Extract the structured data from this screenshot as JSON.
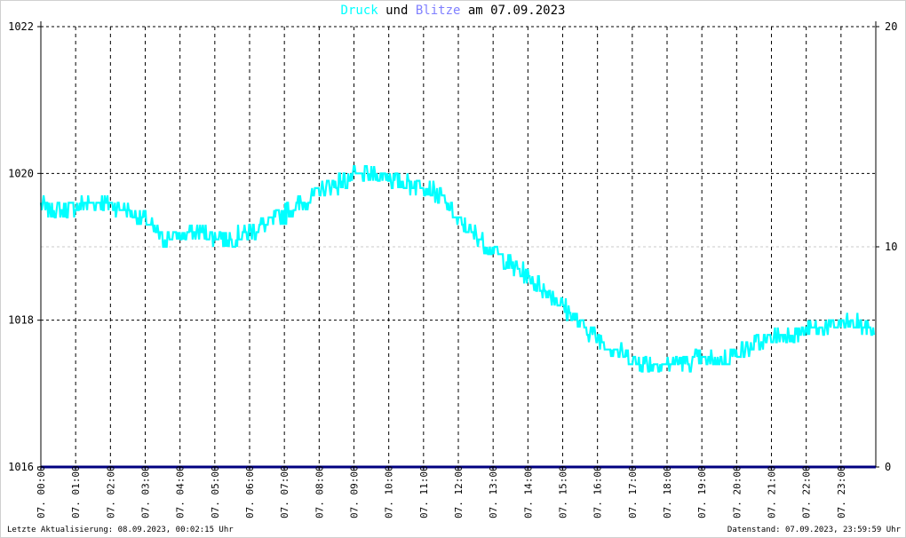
{
  "title": {
    "series1": "Druck",
    "connector": "und",
    "series2": "Blitze",
    "suffix": "am 07.09.2023"
  },
  "colors": {
    "druck": "#00ffff",
    "blitze": "#8080ff",
    "baseline": "#000080",
    "grid": "#000000",
    "minor_grid": "#c8c8c8"
  },
  "footer": {
    "left": "Letzte Aktualisierung: 08.09.2023, 00:02:15 Uhr",
    "right": "Datenstand: 07.09.2023, 23:59:59 Uhr"
  },
  "chart_data": {
    "type": "line",
    "title": "Druck und Blitze am 07.09.2023",
    "xlabel": "",
    "ylabel": "",
    "x_unit": "hours of 07.09.2023",
    "xlim": [
      0,
      24
    ],
    "ylim": [
      1016,
      1022
    ],
    "y_ticks": [
      "1016",
      "1018",
      "1020",
      "1022"
    ],
    "ylim_right": [
      0,
      20
    ],
    "y_ticks_right": [
      "0",
      "10",
      "20"
    ],
    "x_ticks": [
      "07. 00:00",
      "07. 01:00",
      "07. 02:00",
      "07. 03:00",
      "07. 04:00",
      "07. 05:00",
      "07. 06:00",
      "07. 07:00",
      "07. 08:00",
      "07. 09:00",
      "07. 10:00",
      "07. 11:00",
      "07. 12:00",
      "07. 13:00",
      "07. 14:00",
      "07. 15:00",
      "07. 16:00",
      "07. 17:00",
      "07. 18:00",
      "07. 19:00",
      "07. 20:00",
      "07. 21:00",
      "07. 22:00",
      "07. 23:00"
    ],
    "grid": true,
    "series": [
      {
        "name": "Druck",
        "axis": "left",
        "x": [
          0,
          0.5,
          1,
          1.5,
          2,
          2.5,
          3,
          3.5,
          4,
          4.5,
          5,
          5.5,
          6,
          6.5,
          7,
          7.5,
          8,
          8.5,
          9,
          9.5,
          10,
          10.5,
          11,
          11.5,
          12,
          12.5,
          13,
          13.5,
          14,
          14.5,
          15,
          15.5,
          16,
          16.5,
          17,
          17.5,
          18,
          18.5,
          19,
          19.5,
          20,
          20.5,
          21,
          21.5,
          22,
          22.5,
          23,
          23.5,
          23.95
        ],
        "y": [
          1019.55,
          1019.5,
          1019.55,
          1019.6,
          1019.6,
          1019.5,
          1019.35,
          1019.1,
          1019.15,
          1019.2,
          1019.15,
          1019.1,
          1019.2,
          1019.3,
          1019.45,
          1019.6,
          1019.75,
          1019.85,
          1019.95,
          1020.0,
          1019.95,
          1019.85,
          1019.85,
          1019.7,
          1019.35,
          1019.15,
          1018.95,
          1018.75,
          1018.6,
          1018.4,
          1018.2,
          1017.95,
          1017.75,
          1017.6,
          1017.45,
          1017.4,
          1017.4,
          1017.45,
          1017.45,
          1017.45,
          1017.55,
          1017.65,
          1017.75,
          1017.8,
          1017.85,
          1017.9,
          1017.95,
          1017.95,
          1017.85
        ]
      },
      {
        "name": "Blitze",
        "axis": "right",
        "x": [
          0,
          24
        ],
        "y": [
          0,
          0
        ]
      }
    ]
  }
}
